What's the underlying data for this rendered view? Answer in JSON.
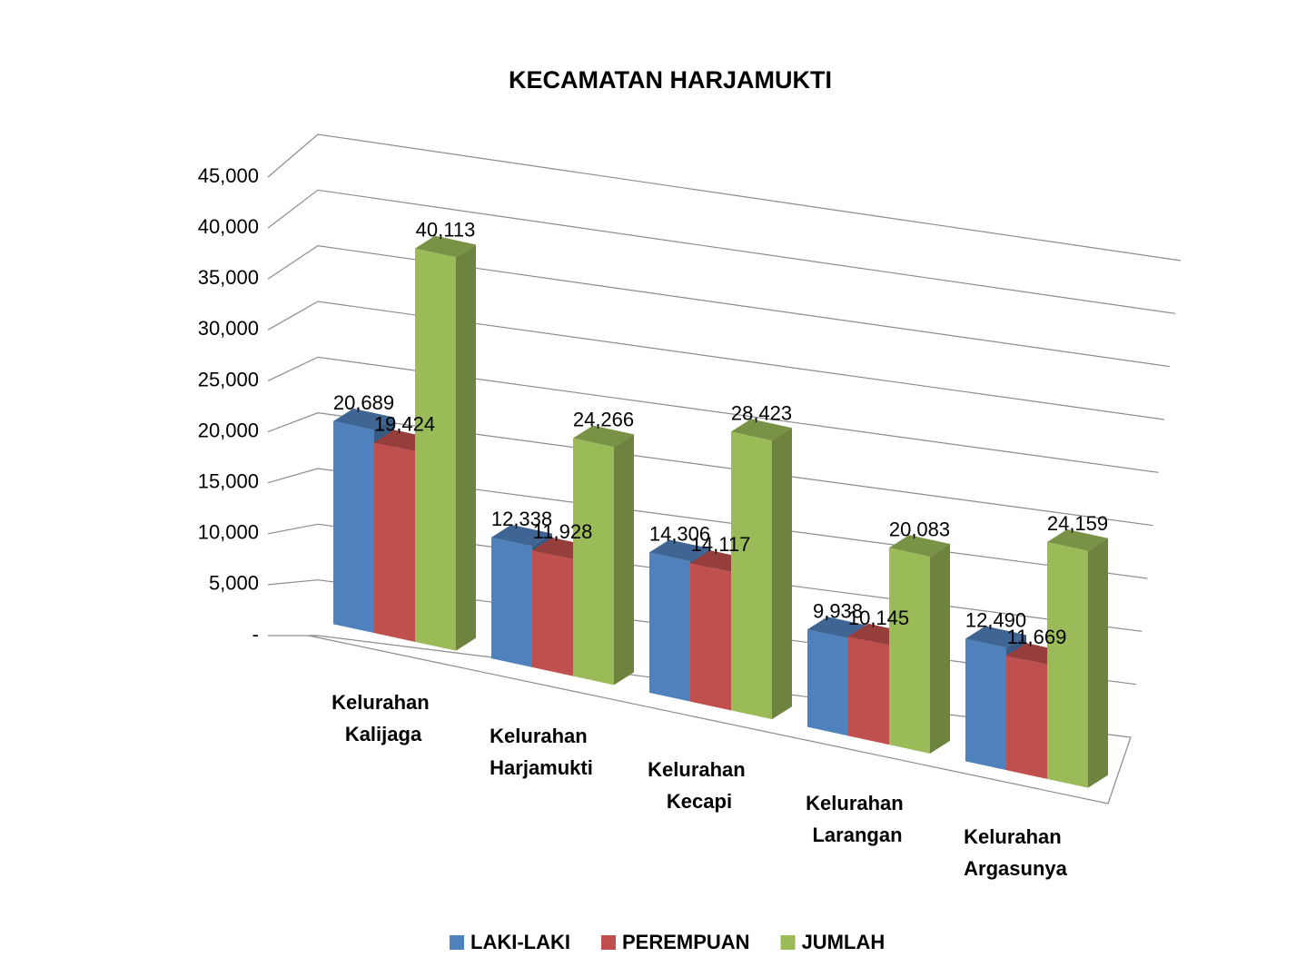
{
  "chart_data": {
    "type": "bar3d",
    "title": "KECAMATAN HARJAMUKTI",
    "categories": [
      "Kelurahan Kalijaga",
      "Kelurahan Harjamukti",
      "Kelurahan Kecapi",
      "Kelurahan Larangan",
      "Kelurahan Argasunya"
    ],
    "series": [
      {
        "name": "LAKI-LAKI",
        "color": "#4f81bd",
        "values": [
          20689,
          12338,
          14306,
          9938,
          12490
        ],
        "value_labels": [
          "20,689",
          "12,338",
          "14,306",
          "9,938",
          "12,490"
        ]
      },
      {
        "name": "PEREMPUAN",
        "color": "#c0504d",
        "values": [
          19424,
          11928,
          14117,
          10145,
          11669
        ],
        "value_labels": [
          "19,424",
          "11,928",
          "14,117",
          "10,145",
          "11,669"
        ]
      },
      {
        "name": "JUMLAH",
        "color": "#9bbb59",
        "values": [
          40113,
          24266,
          28423,
          20083,
          24159
        ],
        "value_labels": [
          "40,113",
          "24,266",
          "28,423",
          "20,083",
          "24,159"
        ]
      }
    ],
    "ylim": [
      0,
      45000
    ],
    "yticks": [
      {
        "value": 0,
        "label": "-"
      },
      {
        "value": 5000,
        "label": "5,000"
      },
      {
        "value": 10000,
        "label": "10,000"
      },
      {
        "value": 15000,
        "label": "15,000"
      },
      {
        "value": 20000,
        "label": "20,000"
      },
      {
        "value": 25000,
        "label": "25,000"
      },
      {
        "value": 30000,
        "label": "30,000"
      },
      {
        "value": 35000,
        "label": "35,000"
      },
      {
        "value": 40000,
        "label": "40,000"
      },
      {
        "value": 45000,
        "label": "45,000"
      }
    ],
    "grid": true,
    "legend": "bottom"
  }
}
